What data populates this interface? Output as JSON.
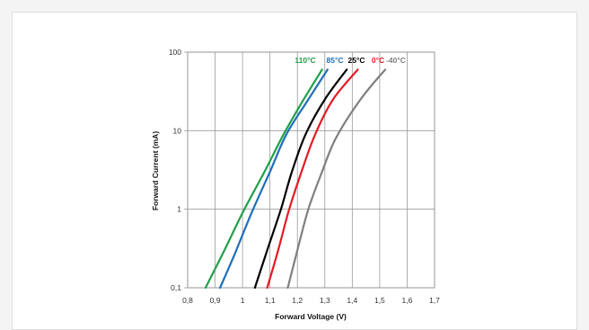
{
  "chart_data": {
    "type": "line",
    "title": "",
    "xlabel": "Forward Voltage (V)",
    "ylabel": "Forward Current (mA)",
    "x_scale": "linear",
    "y_scale": "log",
    "xlim": [
      0.8,
      1.7
    ],
    "ylim": [
      0.1,
      100
    ],
    "x_ticks": [
      "0,8",
      "0,9",
      "1",
      "1,1",
      "1,2",
      "1,3",
      "1,4",
      "1,5",
      "1,6",
      "1,7"
    ],
    "y_ticks": [
      "0,1",
      "1",
      "10",
      "100"
    ],
    "grid": true,
    "legend": "series labels at top of curves",
    "series": [
      {
        "name": "110°C",
        "color": "#1fa04a",
        "points": [
          [
            0.865,
            0.1
          ],
          [
            0.93,
            0.28
          ],
          [
            1.0,
            0.9
          ],
          [
            1.08,
            3.0
          ],
          [
            1.15,
            9
          ],
          [
            1.22,
            24
          ],
          [
            1.29,
            60
          ]
        ]
      },
      {
        "name": "85°C",
        "color": "#1f6fb7",
        "points": [
          [
            0.918,
            0.1
          ],
          [
            0.97,
            0.26
          ],
          [
            1.03,
            0.85
          ],
          [
            1.1,
            3.0
          ],
          [
            1.16,
            9
          ],
          [
            1.24,
            25
          ],
          [
            1.31,
            60
          ]
        ]
      },
      {
        "name": "25°C",
        "color": "#000000",
        "points": [
          [
            1.045,
            0.1
          ],
          [
            1.09,
            0.3
          ],
          [
            1.14,
            1.0
          ],
          [
            1.18,
            3.0
          ],
          [
            1.23,
            9
          ],
          [
            1.3,
            25
          ],
          [
            1.38,
            60
          ]
        ]
      },
      {
        "name": "0°C",
        "color": "#e31b23",
        "points": [
          [
            1.09,
            0.1
          ],
          [
            1.13,
            0.3
          ],
          [
            1.17,
            1.0
          ],
          [
            1.215,
            3.0
          ],
          [
            1.265,
            9
          ],
          [
            1.33,
            25
          ],
          [
            1.42,
            60
          ]
        ]
      },
      {
        "name": "-40°C",
        "color": "#7f7f7f",
        "points": [
          [
            1.165,
            0.1
          ],
          [
            1.2,
            0.3
          ],
          [
            1.24,
            1.0
          ],
          [
            1.29,
            3.0
          ],
          [
            1.34,
            8
          ],
          [
            1.43,
            25
          ],
          [
            1.52,
            60
          ]
        ]
      }
    ]
  }
}
